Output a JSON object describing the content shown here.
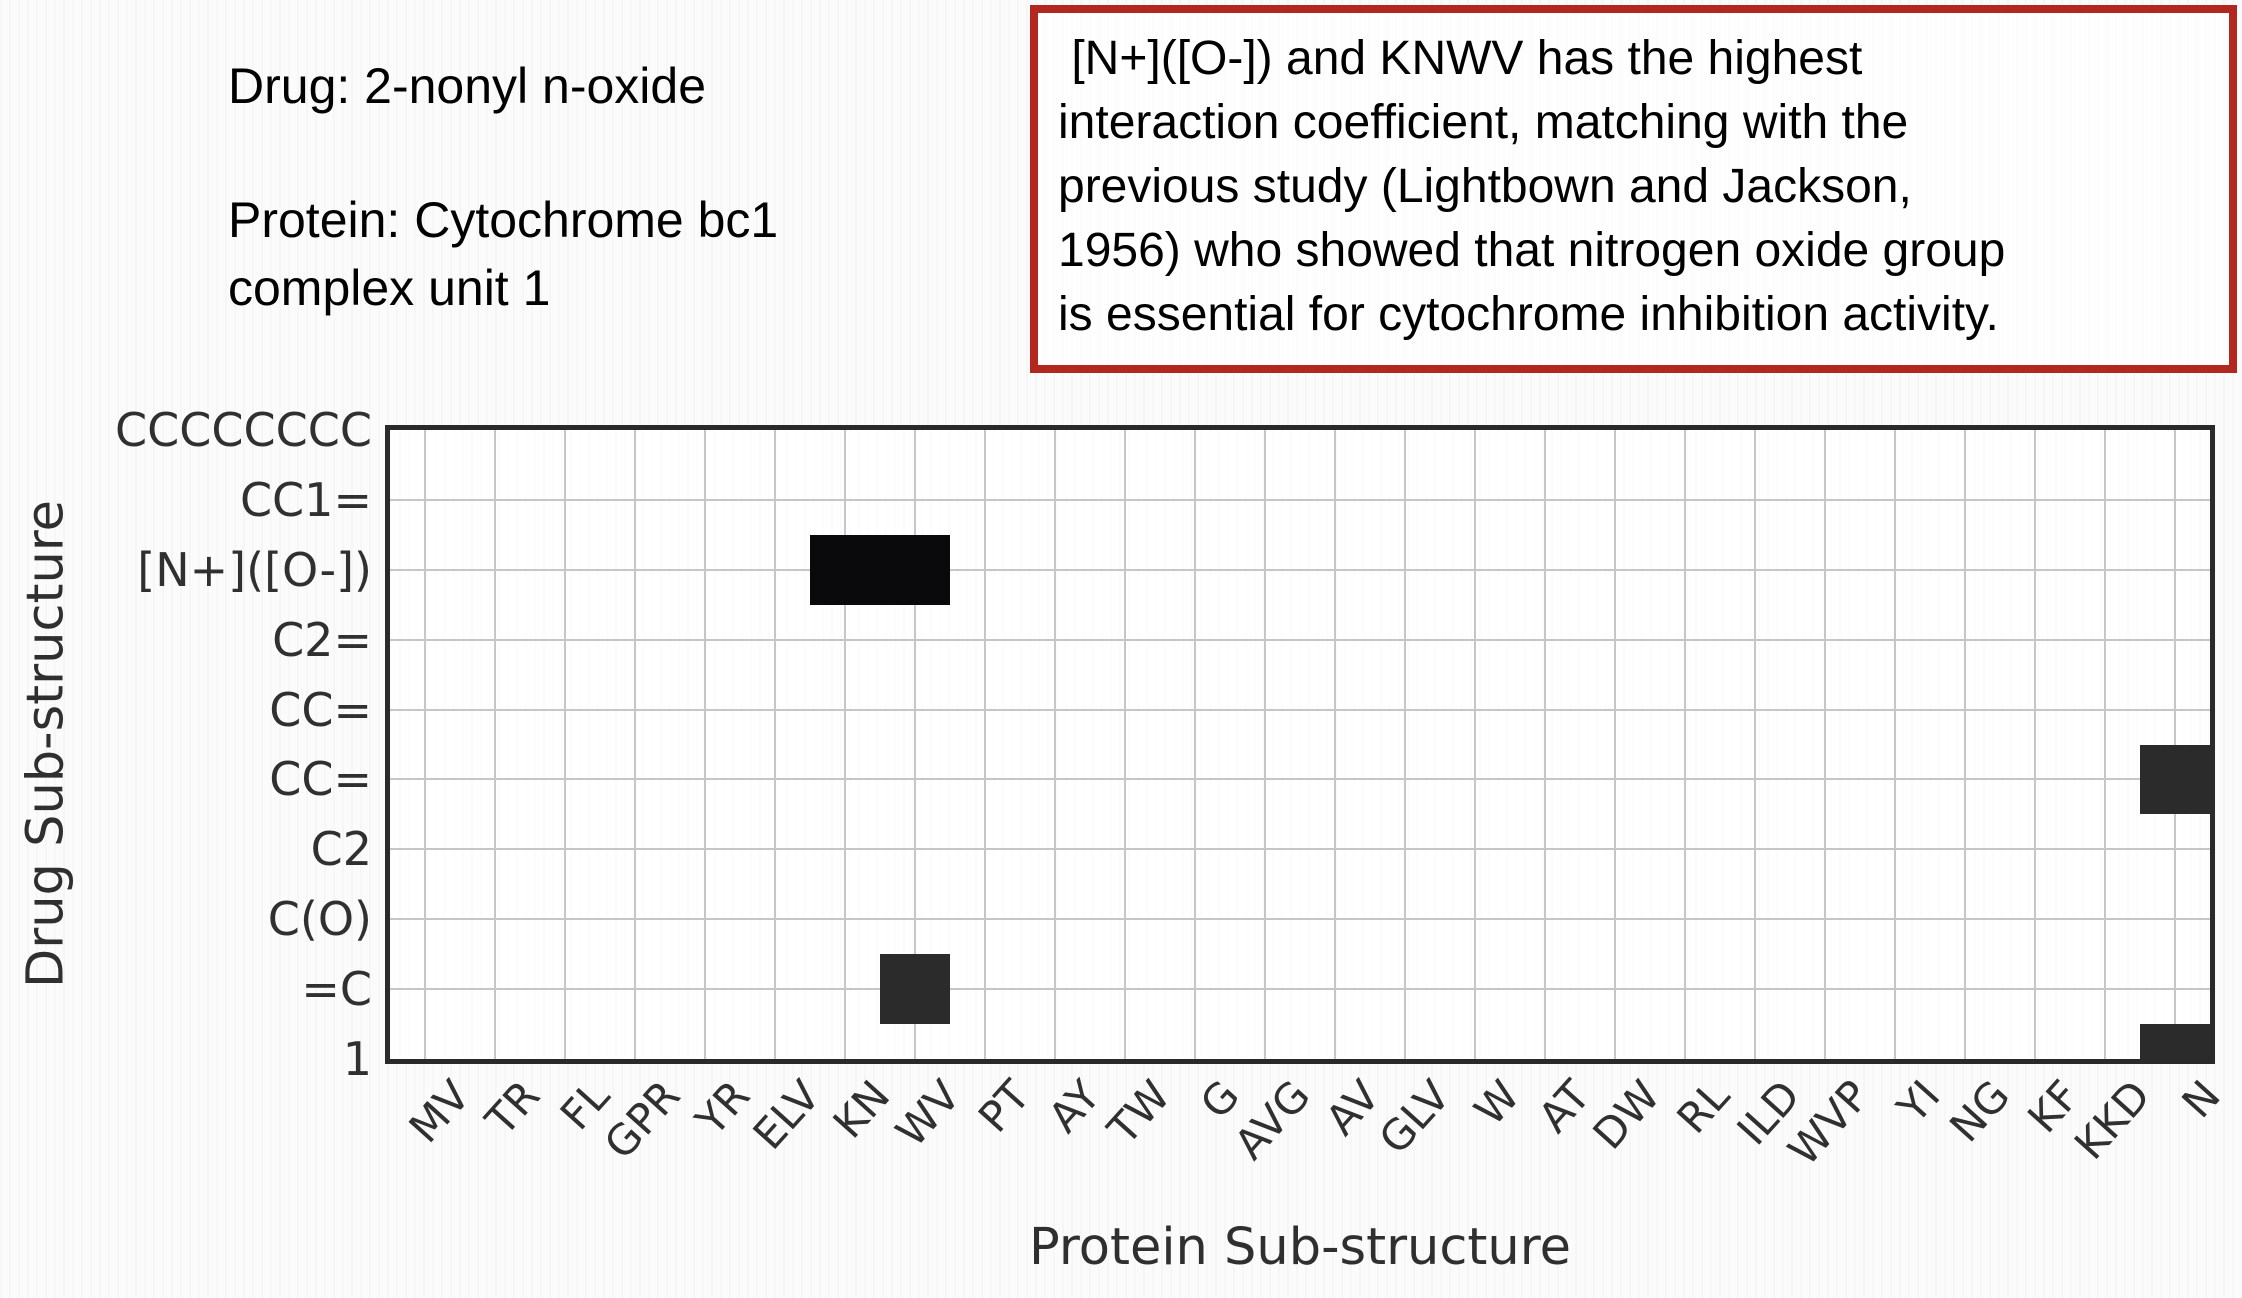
{
  "annotations": {
    "drug_label": "Drug: 2-nonyl n-oxide",
    "protein_label_lines": [
      "Protein: Cytochrome bc1",
      "complex unit 1"
    ],
    "callout": {
      "border_color": "#b3281e",
      "lines": [
        " [N+]([O-]) and KNWV has the highest",
        "interaction coefficient, matching with the",
        "previous study (Lightbown and Jackson,",
        "1956) who showed that nitrogen oxide group",
        "is essential for cytochrome inhibition activity."
      ]
    }
  },
  "chart_data": {
    "type": "heatmap",
    "title": "",
    "xlabel": "Protein Sub-structure",
    "ylabel": "Drug Sub-structure",
    "grid": true,
    "legend": false,
    "x_categories": [
      "MV",
      "TR",
      "FL",
      "GPR",
      "YR",
      "ELV",
      "KN",
      "WV",
      "PT",
      "AY",
      "TW",
      "G",
      "AVG",
      "AV",
      "GLV",
      "W",
      "AT",
      "DW",
      "RL",
      "ILD",
      "WVP",
      "YI",
      "NG",
      "KF",
      "KKD",
      "N"
    ],
    "y_categories": [
      "CCCCCCCC",
      "CC1=",
      "[N+]([O-])",
      "C2=",
      "CC=",
      "CC=",
      "C2",
      "C(O)",
      "=C",
      "1"
    ],
    "cells": [
      {
        "y_label": "[N+]([O-])",
        "y_index": 2,
        "x_label": "KN",
        "x_index": 6,
        "value": 1.0,
        "intensity": "high"
      },
      {
        "y_label": "[N+]([O-])",
        "y_index": 2,
        "x_label": "WV",
        "x_index": 7,
        "value": 1.0,
        "intensity": "high"
      },
      {
        "y_label": "CC=",
        "y_index": 5,
        "x_label": "N",
        "x_index": 25,
        "value": 0.85,
        "intensity": "medium"
      },
      {
        "y_label": "=C",
        "y_index": 8,
        "x_label": "WV",
        "x_index": 7,
        "value": 0.85,
        "intensity": "medium"
      },
      {
        "y_label": "1",
        "y_index": 9,
        "x_label": "N",
        "x_index": 25,
        "value": 0.85,
        "intensity": "medium"
      }
    ],
    "colors": {
      "cell_high": "#0a0a0c",
      "cell_medium": "#2b2b2b",
      "grid_line": "#c6c6c6",
      "plot_border": "#2a2a2a",
      "tick_text": "#303030"
    }
  }
}
